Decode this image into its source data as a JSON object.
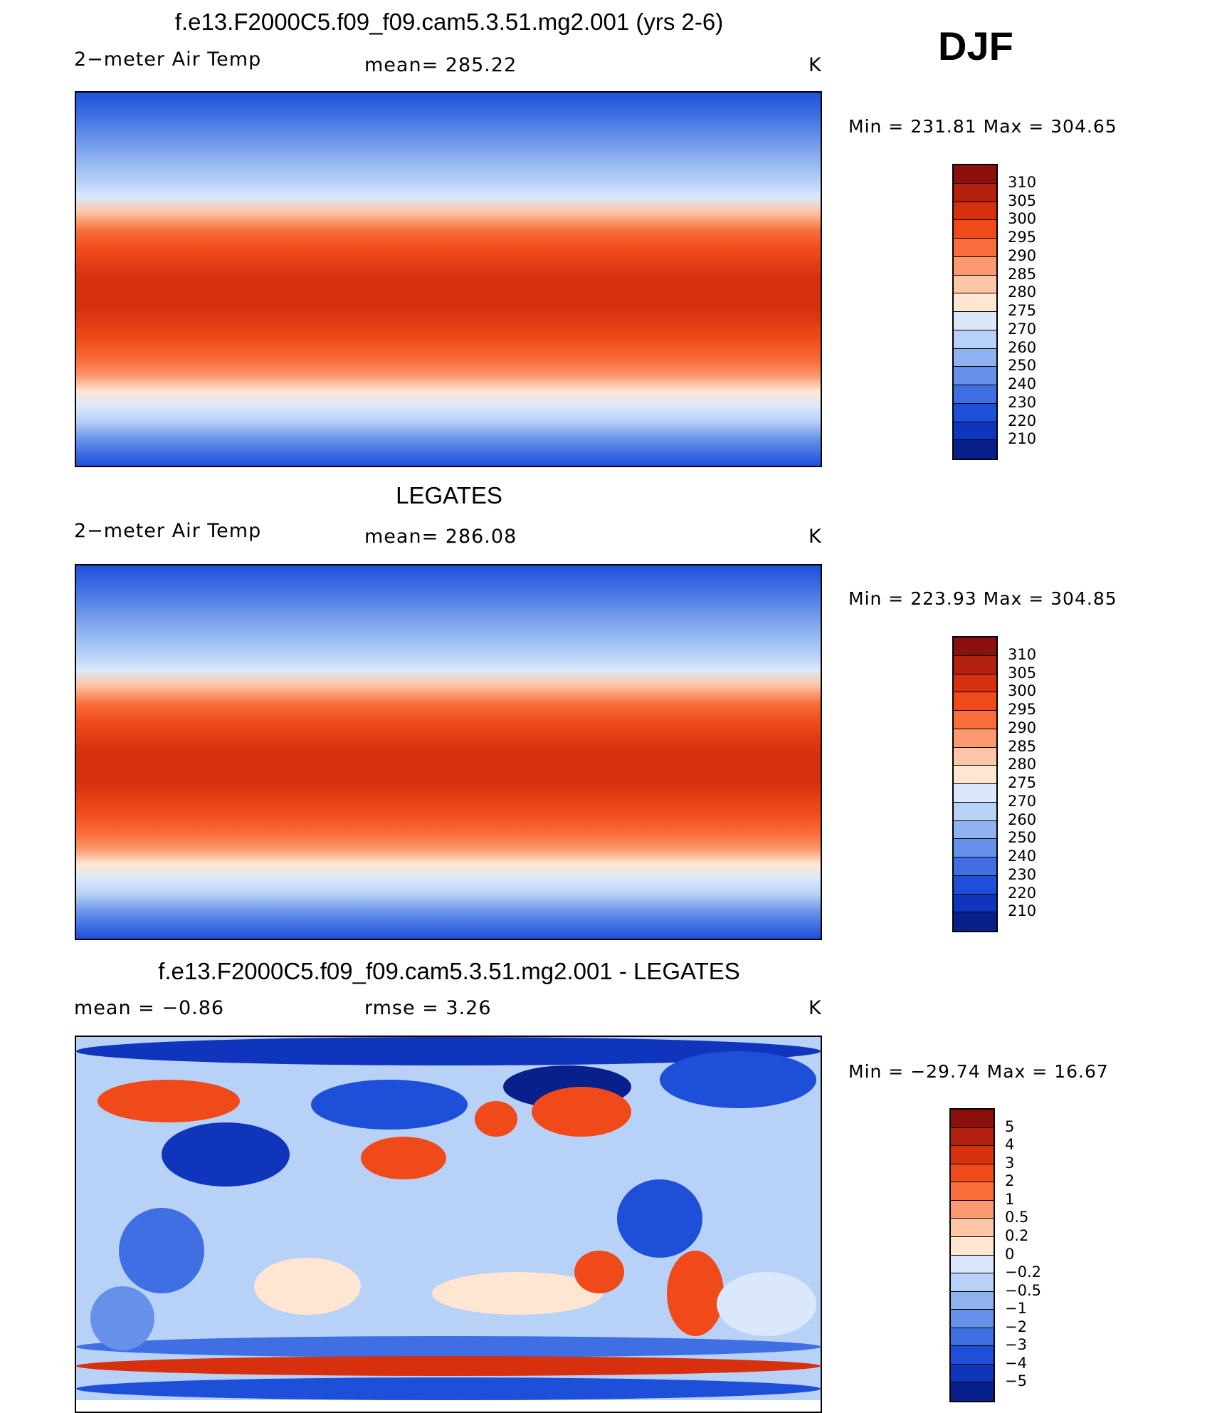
{
  "header": {
    "season": "DJF"
  },
  "panels": [
    {
      "title": "f.e13.F2000C5.f09_f09.cam5.3.51.mg2.001 (yrs 2-6)",
      "left": "2−meter Air Temp",
      "center": "mean=  285.22",
      "right": "K",
      "minmax": "Min  =  231.81  Max  =  304.65",
      "field": "model",
      "colorbar": {
        "labels": [
          "310",
          "305",
          "300",
          "295",
          "290",
          "285",
          "280",
          "275",
          "270",
          "260",
          "250",
          "240",
          "230",
          "220",
          "210"
        ],
        "colors": [
          "#8b0f0a",
          "#b3200d",
          "#d6300f",
          "#f04a1b",
          "#fa6e3c",
          "#fb9a70",
          "#fdc6a6",
          "#fee6d3",
          "#dbe8fb",
          "#b8d1f7",
          "#8fb3f1",
          "#6691ea",
          "#3f6fe3",
          "#1e4fd9",
          "#0f35bd",
          "#08208c"
        ]
      },
      "chart_data": {
        "type": "heatmap",
        "title": "f.e13.F2000C5.f09_f09.cam5.3.51.mg2.001 (yrs 2-6)",
        "variable": "2−meter Air Temp",
        "units": "K",
        "mean": 285.22,
        "min": 231.81,
        "max": 304.65,
        "levels": [
          210,
          220,
          230,
          240,
          250,
          260,
          270,
          275,
          280,
          285,
          290,
          295,
          300,
          305,
          310
        ]
      }
    },
    {
      "title": "LEGATES",
      "left": "2−meter Air Temp",
      "center": "mean=  286.08",
      "right": "K",
      "minmax": "Min  =  223.93  Max  =  304.85",
      "field": "obs",
      "colorbar": {
        "labels": [
          "310",
          "305",
          "300",
          "295",
          "290",
          "285",
          "280",
          "275",
          "270",
          "260",
          "250",
          "240",
          "230",
          "220",
          "210"
        ],
        "colors": [
          "#8b0f0a",
          "#b3200d",
          "#d6300f",
          "#f04a1b",
          "#fa6e3c",
          "#fb9a70",
          "#fdc6a6",
          "#fee6d3",
          "#dbe8fb",
          "#b8d1f7",
          "#8fb3f1",
          "#6691ea",
          "#3f6fe3",
          "#1e4fd9",
          "#0f35bd",
          "#08208c"
        ]
      },
      "chart_data": {
        "type": "heatmap",
        "title": "LEGATES",
        "variable": "2−meter Air Temp",
        "units": "K",
        "mean": 286.08,
        "min": 223.93,
        "max": 304.85,
        "levels": [
          210,
          220,
          230,
          240,
          250,
          260,
          270,
          275,
          280,
          285,
          290,
          295,
          300,
          305,
          310
        ]
      }
    },
    {
      "title": "f.e13.F2000C5.f09_f09.cam5.3.51.mg2.001 - LEGATES",
      "left": "mean  =    −0.86",
      "center": "rmse  =     3.26",
      "right": "K",
      "minmax": "Min  =  −29.74  Max  =    16.67",
      "field": "diff",
      "colorbar": {
        "labels": [
          "5",
          "4",
          "3",
          "2",
          "1",
          "0.5",
          "0.2",
          "0",
          "−0.2",
          "−0.5",
          "−1",
          "−2",
          "−3",
          "−4",
          "−5"
        ],
        "colors": [
          "#8b0f0a",
          "#b3200d",
          "#d6300f",
          "#f04a1b",
          "#fa6e3c",
          "#fb9a70",
          "#fdc6a6",
          "#fee6d3",
          "#dbe8fb",
          "#b8d1f7",
          "#8fb3f1",
          "#6691ea",
          "#3f6fe3",
          "#1e4fd9",
          "#0f35bd",
          "#08208c"
        ]
      },
      "chart_data": {
        "type": "heatmap",
        "title": "f.e13.F2000C5.f09_f09.cam5.3.51.mg2.001 - LEGATES",
        "units": "K",
        "mean": -0.86,
        "rmse": 3.26,
        "min": -29.74,
        "max": 16.67,
        "levels": [
          -5,
          -4,
          -3,
          -2,
          -1,
          -0.5,
          -0.2,
          0,
          0.2,
          0.5,
          1,
          2,
          3,
          4,
          5
        ]
      }
    }
  ]
}
